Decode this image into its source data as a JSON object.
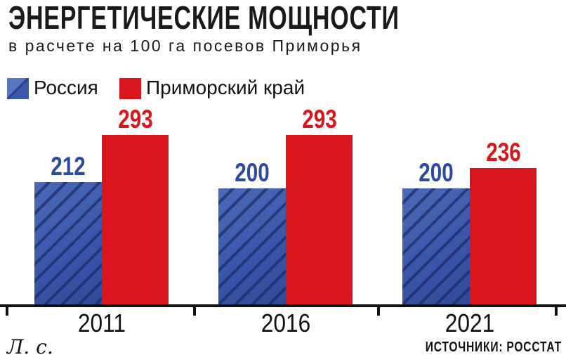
{
  "header": {
    "title": "ЭНЕРГЕТИЧЕСКИЕ МОЩНОСТИ",
    "subtitle": "в расчете на 100 га посевов Приморья"
  },
  "legend": [
    {
      "label": "Россия",
      "swatch": "blue-hatched-square"
    },
    {
      "label": "Приморский край",
      "swatch": "red-square"
    }
  ],
  "footer": {
    "unit": "Л. с.",
    "source": "ИСТОЧНИКИ: РОССТАТ"
  },
  "colors": {
    "russia_blue": "#3a57a9",
    "russia_blue_light": "#5b76c0",
    "russia_blue_dark": "#2b3f8e",
    "primorye_red": "#d9161c",
    "value_label_blue": "#2b4aa0",
    "axis_black": "#111111"
  },
  "chart_data": {
    "type": "bar",
    "title": "ЭНЕРГЕТИЧЕСКИЕ МОЩНОСТИ",
    "subtitle": "в расчете на 100 га посевов Приморья",
    "categories": [
      "2011",
      "2016",
      "2021"
    ],
    "series": [
      {
        "name": "Россия",
        "color": "#3a57a9",
        "hatched": true,
        "values": [
          212,
          200,
          200
        ]
      },
      {
        "name": "Приморский край",
        "color": "#d9161c",
        "hatched": false,
        "values": [
          293,
          293,
          236
        ]
      }
    ],
    "ylabel": "Л. с.",
    "ylim": [
      0,
      300
    ],
    "grid": false,
    "legend_position": "top-left",
    "value_labels": true,
    "source": "ИСТОЧНИКИ: РОССТАТ"
  }
}
